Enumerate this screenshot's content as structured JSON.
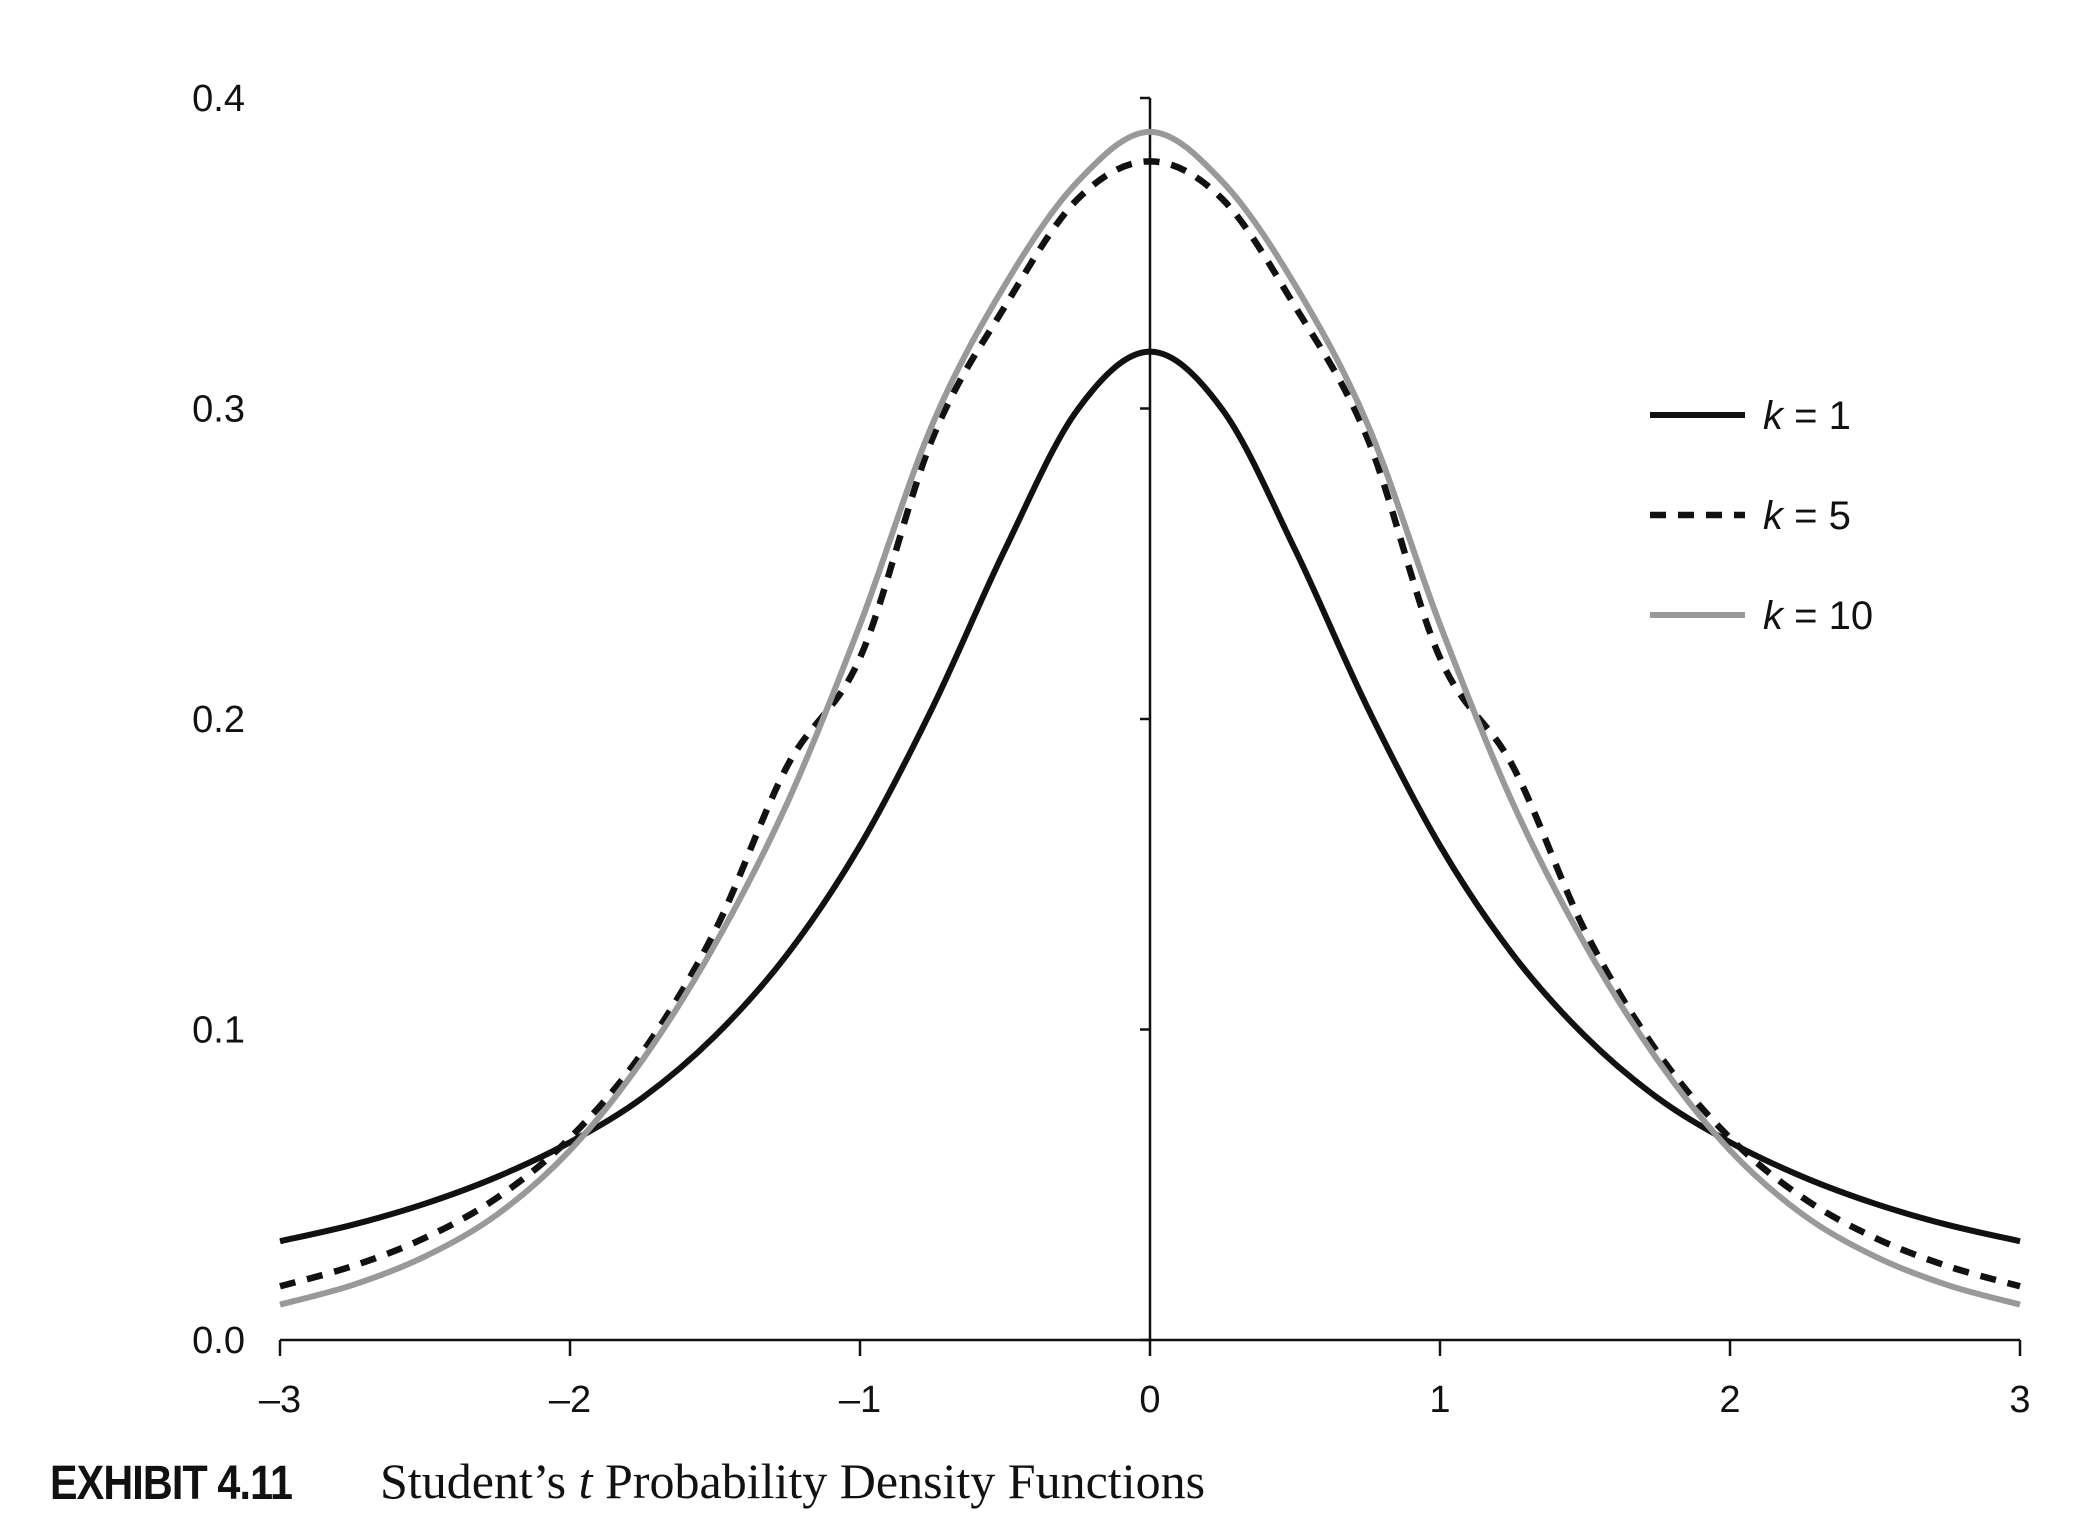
{
  "caption": {
    "exhibit": "EXHIBIT 4.11",
    "title_pre": "Student’s ",
    "title_italic": "t",
    "title_post": " Probability Density Functions"
  },
  "chart_data": {
    "type": "line",
    "title": "",
    "xlabel": "",
    "ylabel": "",
    "xlim": [
      -3,
      3
    ],
    "ylim": [
      0,
      0.4
    ],
    "x_ticks": [
      -3,
      -2,
      -1,
      0,
      1,
      2,
      3
    ],
    "x_tick_labels": [
      "–3",
      "–2",
      "–1",
      "0",
      "1",
      "2",
      "3"
    ],
    "y_ticks": [
      0,
      0.1,
      0.2,
      0.3,
      0.4
    ],
    "y_tick_labels": [
      "0.0",
      "0.1",
      "0.2",
      "0.3",
      "0.4"
    ],
    "grid": false,
    "legend_position": "right",
    "x": [
      -3,
      -2.75,
      -2.5,
      -2.25,
      -2,
      -1.75,
      -1.5,
      -1.25,
      -1,
      -0.75,
      -0.5,
      -0.25,
      0,
      0.25,
      0.5,
      0.75,
      1,
      1.25,
      1.5,
      1.75,
      2,
      2.25,
      2.5,
      2.75,
      3
    ],
    "series": [
      {
        "name": "k = 1",
        "legend_prefix": "k",
        "legend_suffix": " = 1",
        "color": "#111111",
        "style": "solid",
        "values": [
          0.0318,
          0.0371,
          0.0439,
          0.0526,
          0.0637,
          0.078,
          0.0979,
          0.1243,
          0.1592,
          0.2037,
          0.2546,
          0.2996,
          0.3183,
          0.2996,
          0.2546,
          0.2037,
          0.1592,
          0.1243,
          0.0979,
          0.078,
          0.0637,
          0.0526,
          0.0439,
          0.0371,
          0.0318
        ]
      },
      {
        "name": "k = 5",
        "legend_prefix": "k",
        "legend_suffix": " = 5",
        "color": "#111111",
        "style": "dashed",
        "values": [
          0.0173,
          0.0238,
          0.0329,
          0.0459,
          0.0651,
          0.0927,
          0.1318,
          0.185,
          0.2197,
          0.2904,
          0.3329,
          0.3674,
          0.3796,
          0.3674,
          0.3329,
          0.2904,
          0.2197,
          0.185,
          0.1318,
          0.0927,
          0.0651,
          0.0459,
          0.0329,
          0.0238,
          0.0173
        ]
      },
      {
        "name": "k = 10",
        "legend_prefix": "k",
        "legend_suffix": " = 10",
        "color": "#999999",
        "style": "solid",
        "values": [
          0.0114,
          0.0177,
          0.0269,
          0.0405,
          0.0611,
          0.0902,
          0.1274,
          0.1731,
          0.2304,
          0.295,
          0.3398,
          0.373,
          0.3891,
          0.373,
          0.3398,
          0.295,
          0.2304,
          0.1731,
          0.1274,
          0.0902,
          0.0611,
          0.0405,
          0.0269,
          0.0177,
          0.0114
        ]
      }
    ]
  }
}
